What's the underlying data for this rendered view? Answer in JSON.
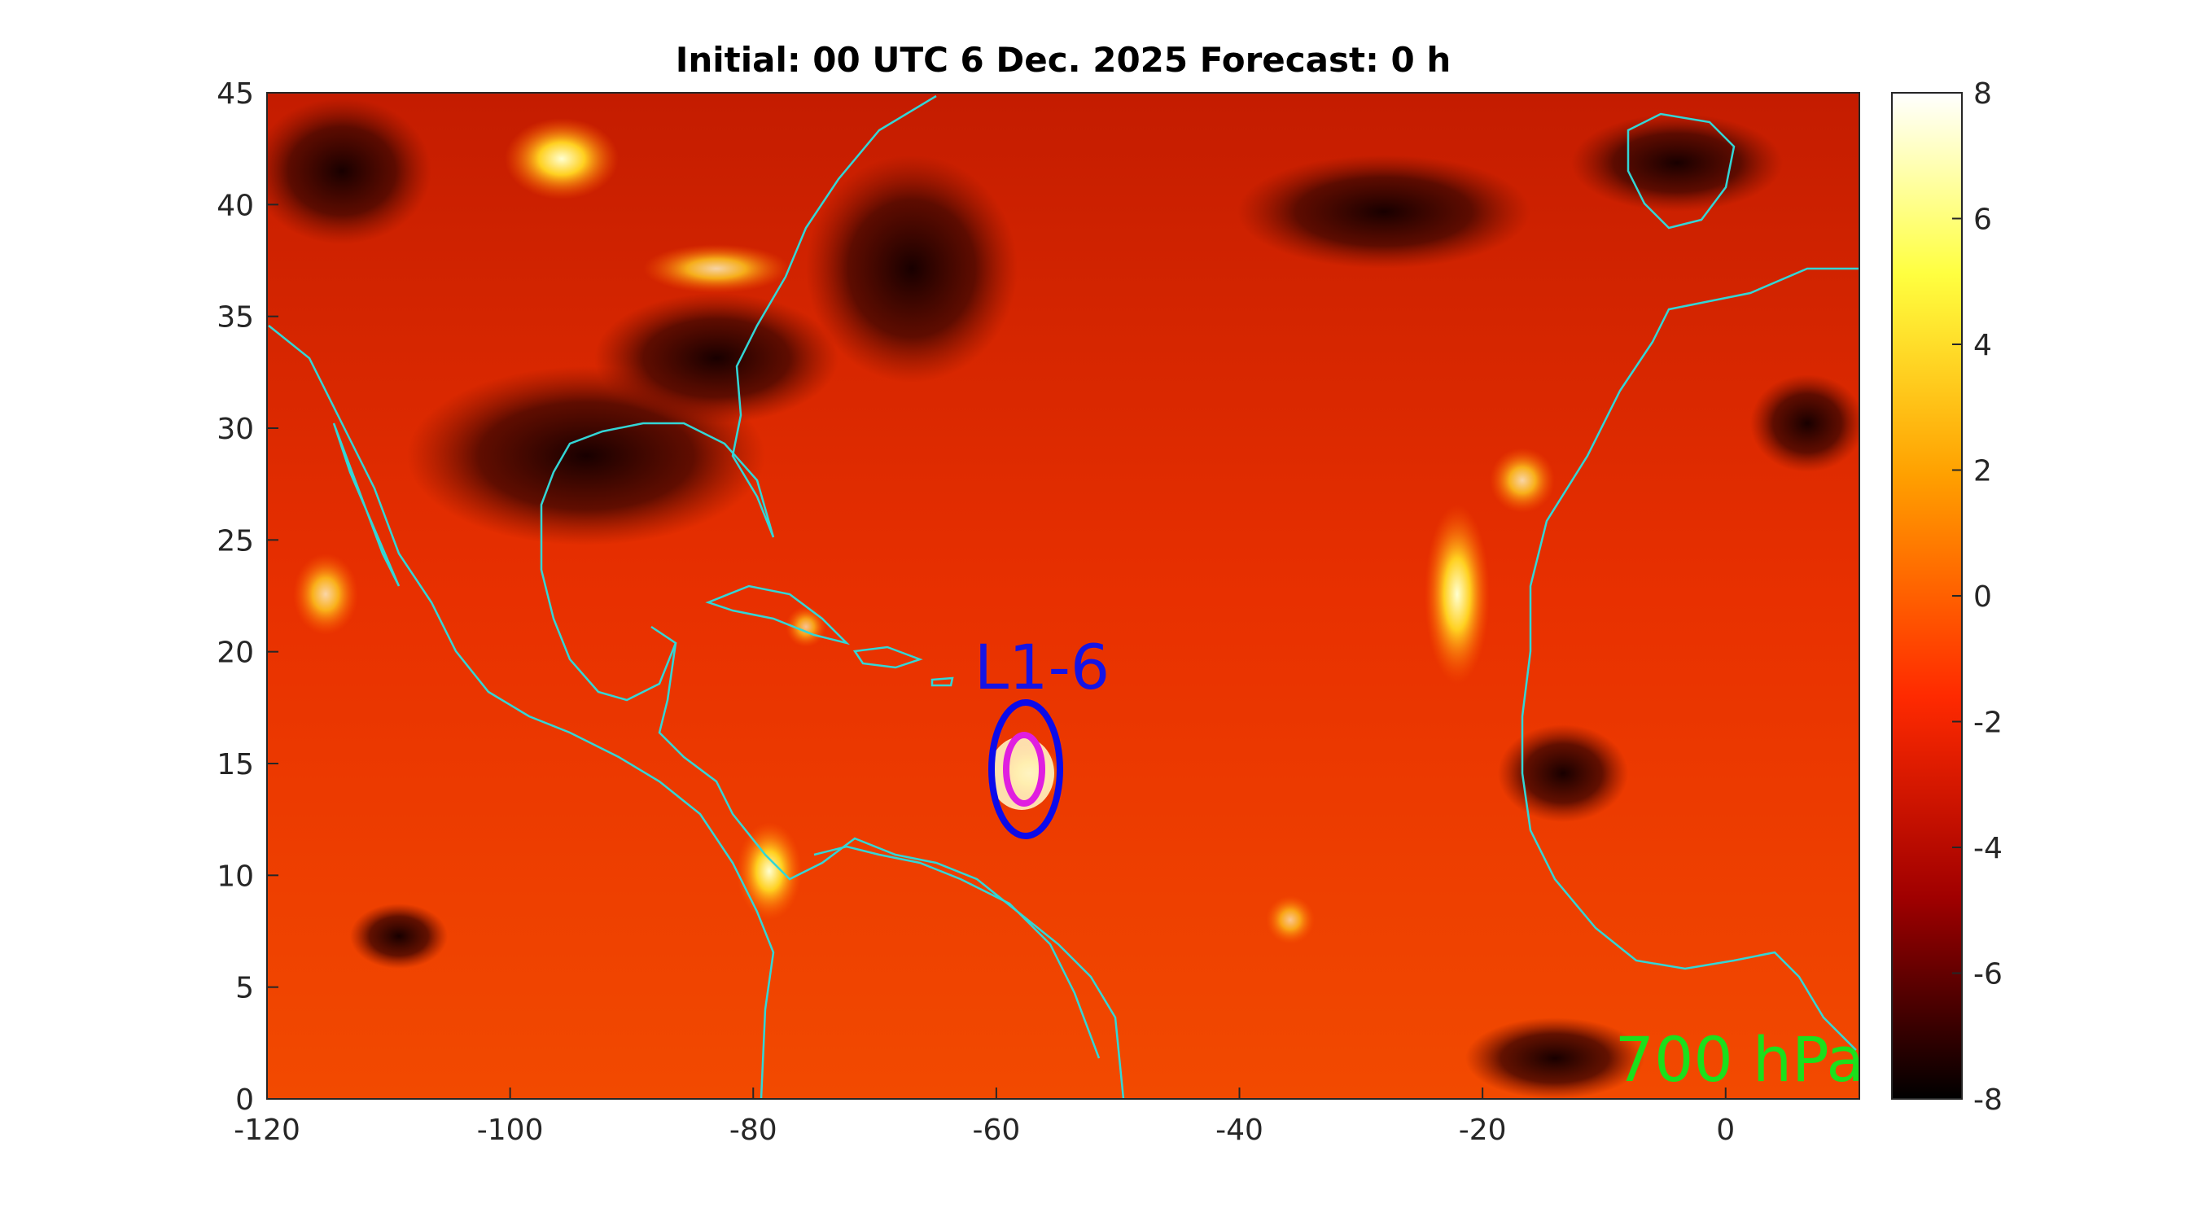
{
  "figure": {
    "title": "Initial: 00 UTC 6 Dec. 2025 Forecast: 0 h",
    "level_label": "700 hPa",
    "system_label": "L1-6"
  },
  "map": {
    "lon_range": [
      -120,
      11
    ],
    "lat_range": [
      0,
      45
    ],
    "x_ticks": [
      "-120",
      "-100",
      "-80",
      "-60",
      "-40",
      "-20",
      "0"
    ],
    "y_ticks": [
      "0",
      "5",
      "10",
      "15",
      "20",
      "25",
      "30",
      "35",
      "40",
      "45"
    ],
    "coastline_color": "#33d6d6",
    "field_colormap": "hot",
    "system_center": {
      "lon": -57.5,
      "lat": 14.8
    },
    "outer_circle_color": "#0a0aeb",
    "inner_circle_color": "#e01ee0"
  },
  "colorbar": {
    "range": [
      -8,
      8
    ],
    "ticks": [
      "8",
      "6",
      "4",
      "2",
      "0",
      "-2",
      "-4",
      "-6",
      "-8"
    ]
  }
}
